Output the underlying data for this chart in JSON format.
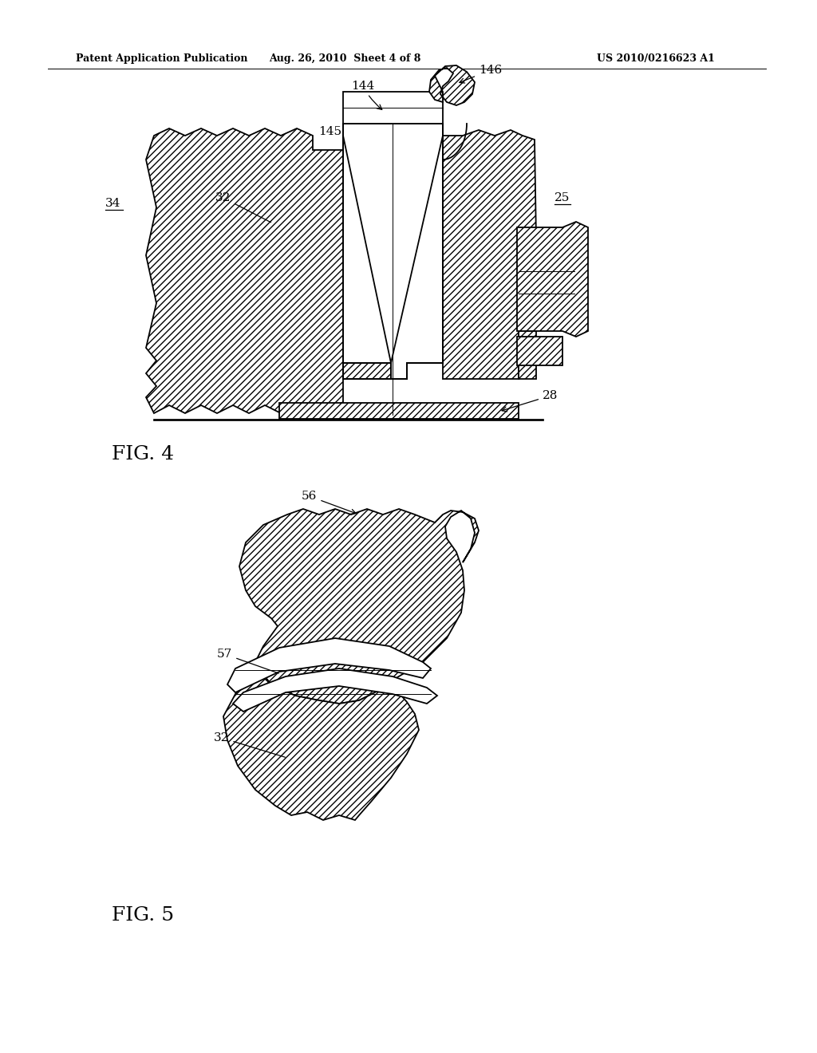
{
  "bg_color": "#ffffff",
  "header_left": "Patent Application Publication",
  "header_mid": "Aug. 26, 2010  Sheet 4 of 8",
  "header_right": "US 2010/0216623 A1",
  "fig4_label": "FIG. 4",
  "fig5_label": "FIG. 5",
  "line_color": "#000000",
  "linewidth": 1.3,
  "thin_linewidth": 0.7,
  "label_fontsize": 11,
  "header_fontsize": 9,
  "figlabel_fontsize": 18
}
